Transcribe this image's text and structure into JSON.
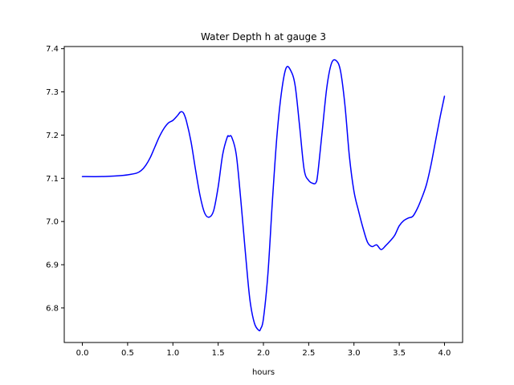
{
  "chart_data": {
    "type": "line",
    "title": "Water Depth h at gauge 3",
    "xlabel": "hours",
    "ylabel": "",
    "xlim": [
      -0.2,
      4.2
    ],
    "ylim": [
      6.72,
      7.405
    ],
    "xticks": [
      0.0,
      0.5,
      1.0,
      1.5,
      2.0,
      2.5,
      3.0,
      3.5,
      4.0
    ],
    "xtick_labels": [
      "0.0",
      "0.5",
      "1.0",
      "1.5",
      "2.0",
      "2.5",
      "3.0",
      "3.5",
      "4.0"
    ],
    "yticks": [
      6.8,
      6.9,
      7.0,
      7.1,
      7.2,
      7.3,
      7.4
    ],
    "ytick_labels": [
      "6.8",
      "6.9",
      "7.0",
      "7.1",
      "7.2",
      "7.3",
      "7.4"
    ],
    "grid": false,
    "series": [
      {
        "color": "#0000ff",
        "x": [
          0.0,
          0.2,
          0.4,
          0.5,
          0.6,
          0.65,
          0.7,
          0.75,
          0.8,
          0.85,
          0.9,
          0.95,
          1.0,
          1.05,
          1.08,
          1.1,
          1.12,
          1.15,
          1.2,
          1.25,
          1.3,
          1.35,
          1.4,
          1.45,
          1.5,
          1.55,
          1.6,
          1.62,
          1.65,
          1.7,
          1.75,
          1.8,
          1.85,
          1.9,
          1.95,
          1.97,
          2.0,
          2.05,
          2.1,
          2.15,
          2.2,
          2.25,
          2.3,
          2.35,
          2.4,
          2.45,
          2.5,
          2.55,
          2.58,
          2.6,
          2.65,
          2.7,
          2.75,
          2.8,
          2.85,
          2.9,
          2.95,
          3.0,
          3.05,
          3.1,
          3.15,
          3.2,
          3.25,
          3.3,
          3.35,
          3.4,
          3.45,
          3.5,
          3.55,
          3.6,
          3.65,
          3.7,
          3.75,
          3.8,
          3.85,
          3.9,
          3.95,
          4.0
        ],
        "y": [
          7.104,
          7.104,
          7.106,
          7.108,
          7.112,
          7.118,
          7.13,
          7.148,
          7.172,
          7.196,
          7.215,
          7.228,
          7.234,
          7.245,
          7.253,
          7.254,
          7.25,
          7.232,
          7.185,
          7.12,
          7.06,
          7.02,
          7.01,
          7.025,
          7.08,
          7.155,
          7.195,
          7.197,
          7.195,
          7.155,
          7.05,
          6.93,
          6.82,
          6.765,
          6.748,
          6.752,
          6.775,
          6.88,
          7.05,
          7.2,
          7.3,
          7.355,
          7.35,
          7.315,
          7.22,
          7.12,
          7.095,
          7.088,
          7.09,
          7.11,
          7.21,
          7.31,
          7.365,
          7.373,
          7.35,
          7.27,
          7.15,
          7.07,
          7.025,
          6.985,
          6.952,
          6.942,
          6.946,
          6.935,
          6.944,
          6.955,
          6.968,
          6.99,
          7.002,
          7.008,
          7.012,
          7.03,
          7.055,
          7.085,
          7.13,
          7.185,
          7.24,
          7.29
        ]
      }
    ]
  }
}
